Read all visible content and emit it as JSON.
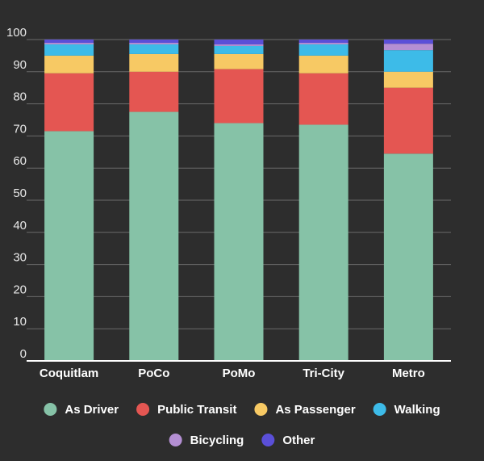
{
  "chart_data": {
    "type": "bar",
    "stacked": true,
    "title": "",
    "xlabel": "",
    "ylabel": "",
    "ylim": [
      0,
      100
    ],
    "yticks": [
      0,
      10,
      20,
      30,
      40,
      50,
      60,
      70,
      80,
      90,
      100
    ],
    "grid": true,
    "legend_position": "bottom",
    "categories": [
      "Coquitlam",
      "PoCo",
      "PoMo",
      "Tri-City",
      "Metro"
    ],
    "series": [
      {
        "name": "As Driver",
        "color": "#86c2a7",
        "values": [
          71.5,
          77.5,
          74,
          73.5,
          64.5
        ]
      },
      {
        "name": "Public Transit",
        "color": "#e45652",
        "values": [
          18,
          12.5,
          16.8,
          16,
          20.5
        ]
      },
      {
        "name": "As Passenger",
        "color": "#f7c964",
        "values": [
          5.5,
          5.5,
          4.7,
          5.5,
          5
        ]
      },
      {
        "name": "Walking",
        "color": "#3dbbe8",
        "values": [
          3.5,
          3,
          2.5,
          3.5,
          6.7
        ]
      },
      {
        "name": "Bicycling",
        "color": "#b48fd3",
        "values": [
          0.5,
          0.5,
          0.5,
          0.5,
          2
        ]
      },
      {
        "name": "Other",
        "color": "#5a4fd8",
        "values": [
          1,
          1,
          1.5,
          1,
          1.3
        ]
      }
    ]
  }
}
